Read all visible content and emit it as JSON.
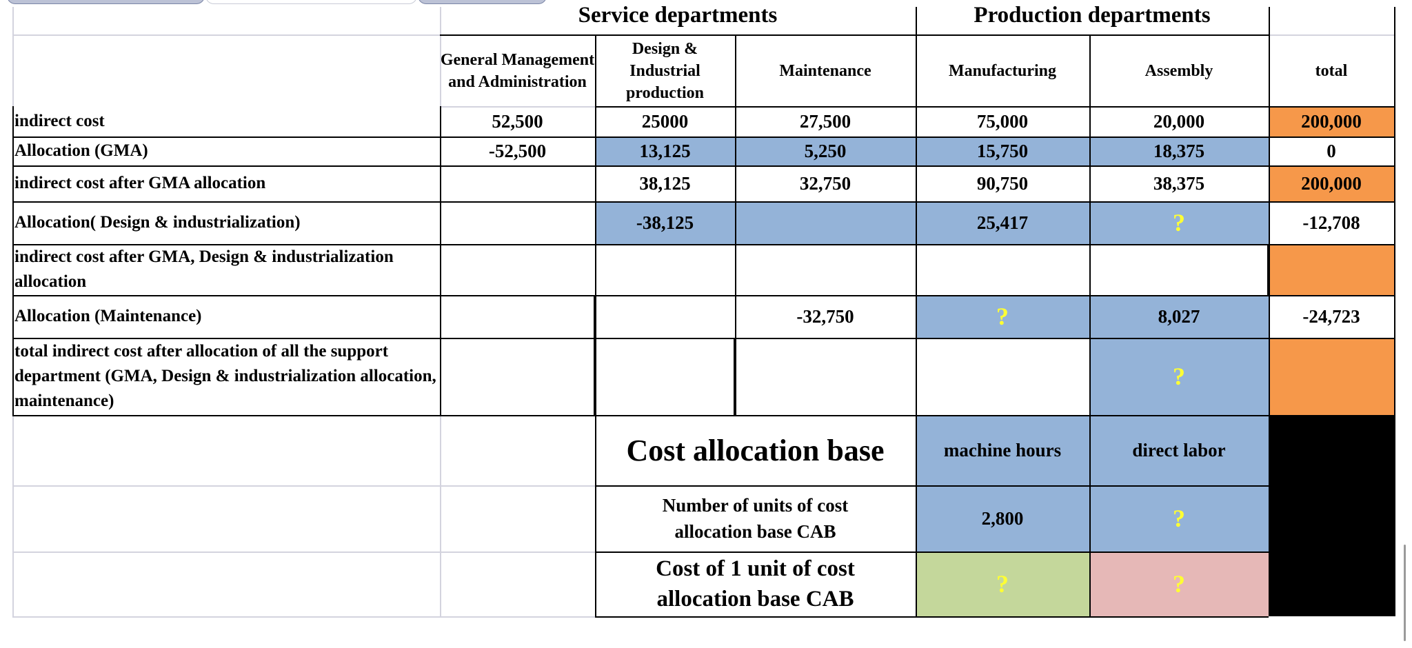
{
  "header": {
    "service_departments": "Service departments",
    "production_departments": "Production departments"
  },
  "columns": {
    "gma": "General Management and Administration",
    "design": "Design & Industrial production",
    "maintenance": "Maintenance",
    "manufacturing": "Manufacturing",
    "assembly": "Assembly",
    "total": "total"
  },
  "rows": [
    {
      "label": "indirect cost",
      "gma": "52,500",
      "design": "25000",
      "maintenance": "27,500",
      "manufacturing": "75,000",
      "assembly": "20,000",
      "total": "200,000"
    },
    {
      "label": "Allocation (GMA)",
      "gma": "-52,500",
      "design": "13,125",
      "maintenance": "5,250",
      "manufacturing": "15,750",
      "assembly": "18,375",
      "total": "0"
    },
    {
      "label": "indirect cost after GMA allocation",
      "gma": "",
      "design": "38,125",
      "maintenance": "32,750",
      "manufacturing": "90,750",
      "assembly": "38,375",
      "total": "200,000"
    },
    {
      "label": "Allocation( Design & industrialization)",
      "gma": "",
      "design": "-38,125",
      "maintenance": "",
      "manufacturing": "25,417",
      "assembly": "?",
      "total": "-12,708"
    },
    {
      "label": "indirect cost after GMA, Design & industrialization allocation",
      "gma": "",
      "design": "",
      "maintenance": "",
      "manufacturing": "",
      "assembly": "",
      "total": ""
    },
    {
      "label": "Allocation (Maintenance)",
      "gma": "",
      "design": "",
      "maintenance": "-32,750",
      "manufacturing": "?",
      "assembly": "8,027",
      "total": "-24,723"
    },
    {
      "label": "total indirect cost after allocation of all the support department (GMA, Design & industrialization allocation, maintenance)",
      "gma": "",
      "design": "",
      "maintenance": "",
      "manufacturing": "",
      "assembly": "?",
      "total": ""
    }
  ],
  "cab": {
    "title": "Cost allocation base",
    "manufacturing": "machine hours",
    "assembly": "direct labor",
    "units_label": "Number of units of  cost allocation base CAB",
    "units_manufacturing": "2,800",
    "units_assembly": "?",
    "cost_label": "Cost of 1 unit of cost allocation base CAB",
    "cost_manufacturing": "?",
    "cost_assembly": "?"
  },
  "colors": {
    "blue": "#94b3d8",
    "orange": "#f6984a",
    "green": "#c4d79b",
    "pink": "#e6b8b7",
    "question": "#ffff33"
  }
}
